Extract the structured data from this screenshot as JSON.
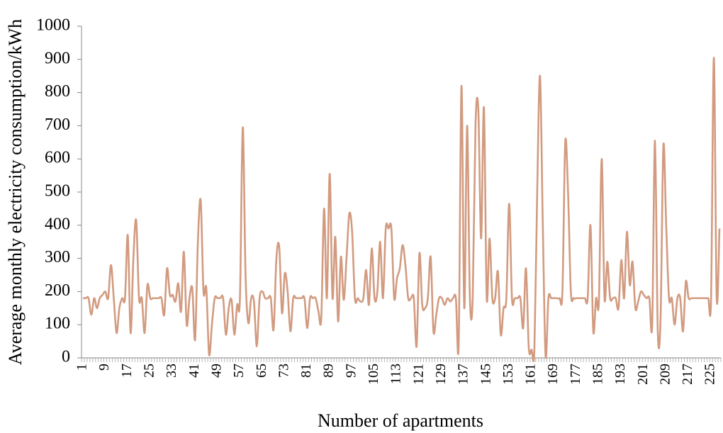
{
  "chart_data": {
    "type": "line",
    "xlabel": "Number of apartments",
    "ylabel": "Average monthly electricity consumption/kWh",
    "categories": [
      1,
      null,
      null,
      null,
      null,
      null,
      null,
      null,
      9,
      null,
      null,
      null,
      null,
      null,
      null,
      null,
      17,
      null,
      null,
      null,
      null,
      null,
      null,
      null,
      25,
      null,
      null,
      null,
      null,
      null,
      null,
      null,
      33,
      null,
      null,
      null,
      null,
      null,
      null,
      null,
      41,
      null,
      null,
      null,
      null,
      null,
      null,
      null,
      49,
      null,
      null,
      null,
      null,
      null,
      null,
      null,
      57,
      null,
      null,
      null,
      null,
      null,
      null,
      null,
      65,
      null,
      null,
      null,
      null,
      null,
      null,
      null,
      73,
      null,
      null,
      null,
      null,
      null,
      null,
      null,
      81,
      null,
      null,
      null,
      null,
      null,
      null,
      null,
      89,
      null,
      null,
      null,
      null,
      null,
      null,
      null,
      97,
      null,
      null,
      null,
      null,
      null,
      null,
      null,
      105,
      null,
      null,
      null,
      null,
      null,
      null,
      null,
      113,
      null,
      null,
      null,
      null,
      null,
      null,
      null,
      121,
      null,
      null,
      null,
      null,
      null,
      null,
      null,
      129,
      null,
      null,
      null,
      null,
      null,
      null,
      null,
      137,
      null,
      null,
      null,
      null,
      null,
      null,
      null,
      145,
      null,
      null,
      null,
      null,
      null,
      null,
      null,
      153,
      null,
      null,
      null,
      null,
      null,
      null,
      null,
      161,
      null,
      null,
      null,
      null,
      null,
      null,
      null,
      169,
      null,
      null,
      null,
      null,
      null,
      null,
      null,
      177,
      null,
      null,
      null,
      null,
      null,
      null,
      null,
      185,
      null,
      null,
      null,
      null,
      null,
      null,
      null,
      193,
      null,
      null,
      null,
      null,
      null,
      null,
      null,
      201,
      null,
      null,
      null,
      null,
      null,
      null,
      null,
      209,
      null,
      null,
      null,
      null,
      null,
      null,
      null,
      217,
      null,
      null,
      null,
      null,
      null,
      null,
      null,
      225,
      null,
      null,
      null
    ],
    "series": [
      {
        "name": "Average monthly electricity consumption",
        "color": "#d29b80",
        "values": [
          180,
          180,
          180,
          130,
          180,
          150,
          180,
          190,
          200,
          180,
          280,
          180,
          75,
          150,
          180,
          180,
          370,
          75,
          300,
          415,
          180,
          180,
          75,
          220,
          180,
          180,
          180,
          180,
          180,
          130,
          270,
          190,
          190,
          170,
          225,
          140,
          320,
          100,
          180,
          210,
          55,
          350,
          475,
          200,
          210,
          10,
          100,
          180,
          180,
          180,
          180,
          70,
          150,
          175,
          70,
          160,
          180,
          695,
          250,
          105,
          180,
          170,
          35,
          180,
          200,
          180,
          180,
          180,
          85,
          300,
          335,
          135,
          255,
          200,
          80,
          180,
          180,
          180,
          180,
          180,
          90,
          180,
          180,
          180,
          140,
          120,
          450,
          180,
          555,
          180,
          365,
          110,
          305,
          175,
          300,
          435,
          380,
          180,
          180,
          170,
          180,
          265,
          160,
          330,
          180,
          200,
          350,
          180,
          390,
          390,
          390,
          180,
          240,
          270,
          340,
          280,
          180,
          180,
          180,
          35,
          315,
          160,
          150,
          180,
          305,
          80,
          130,
          180,
          180,
          160,
          180,
          170,
          180,
          180,
          40,
          820,
          150,
          700,
          180,
          180,
          700,
          750,
          360,
          755,
          180,
          360,
          180,
          180,
          260,
          70,
          150,
          180,
          465,
          180,
          180,
          180,
          180,
          90,
          270,
          30,
          25,
          25,
          500,
          850,
          400,
          5,
          180,
          180,
          180,
          180,
          180,
          200,
          650,
          500,
          200,
          180,
          180,
          180,
          180,
          180,
          180,
          400,
          80,
          180,
          170,
          600,
          180,
          290,
          180,
          180,
          180,
          150,
          295,
          180,
          380,
          220,
          290,
          150,
          170,
          200,
          190,
          180,
          180,
          100,
          655,
          80,
          120,
          640,
          400,
          180,
          180,
          100,
          180,
          180,
          80,
          230,
          180,
          180,
          180,
          180,
          180,
          180,
          180,
          180,
          180,
          905,
          180,
          390
        ]
      }
    ],
    "ylim": [
      0,
      1000
    ],
    "yticks": [
      0,
      100,
      200,
      300,
      400,
      500,
      600,
      700,
      800,
      900,
      1000
    ],
    "grid": false
  }
}
